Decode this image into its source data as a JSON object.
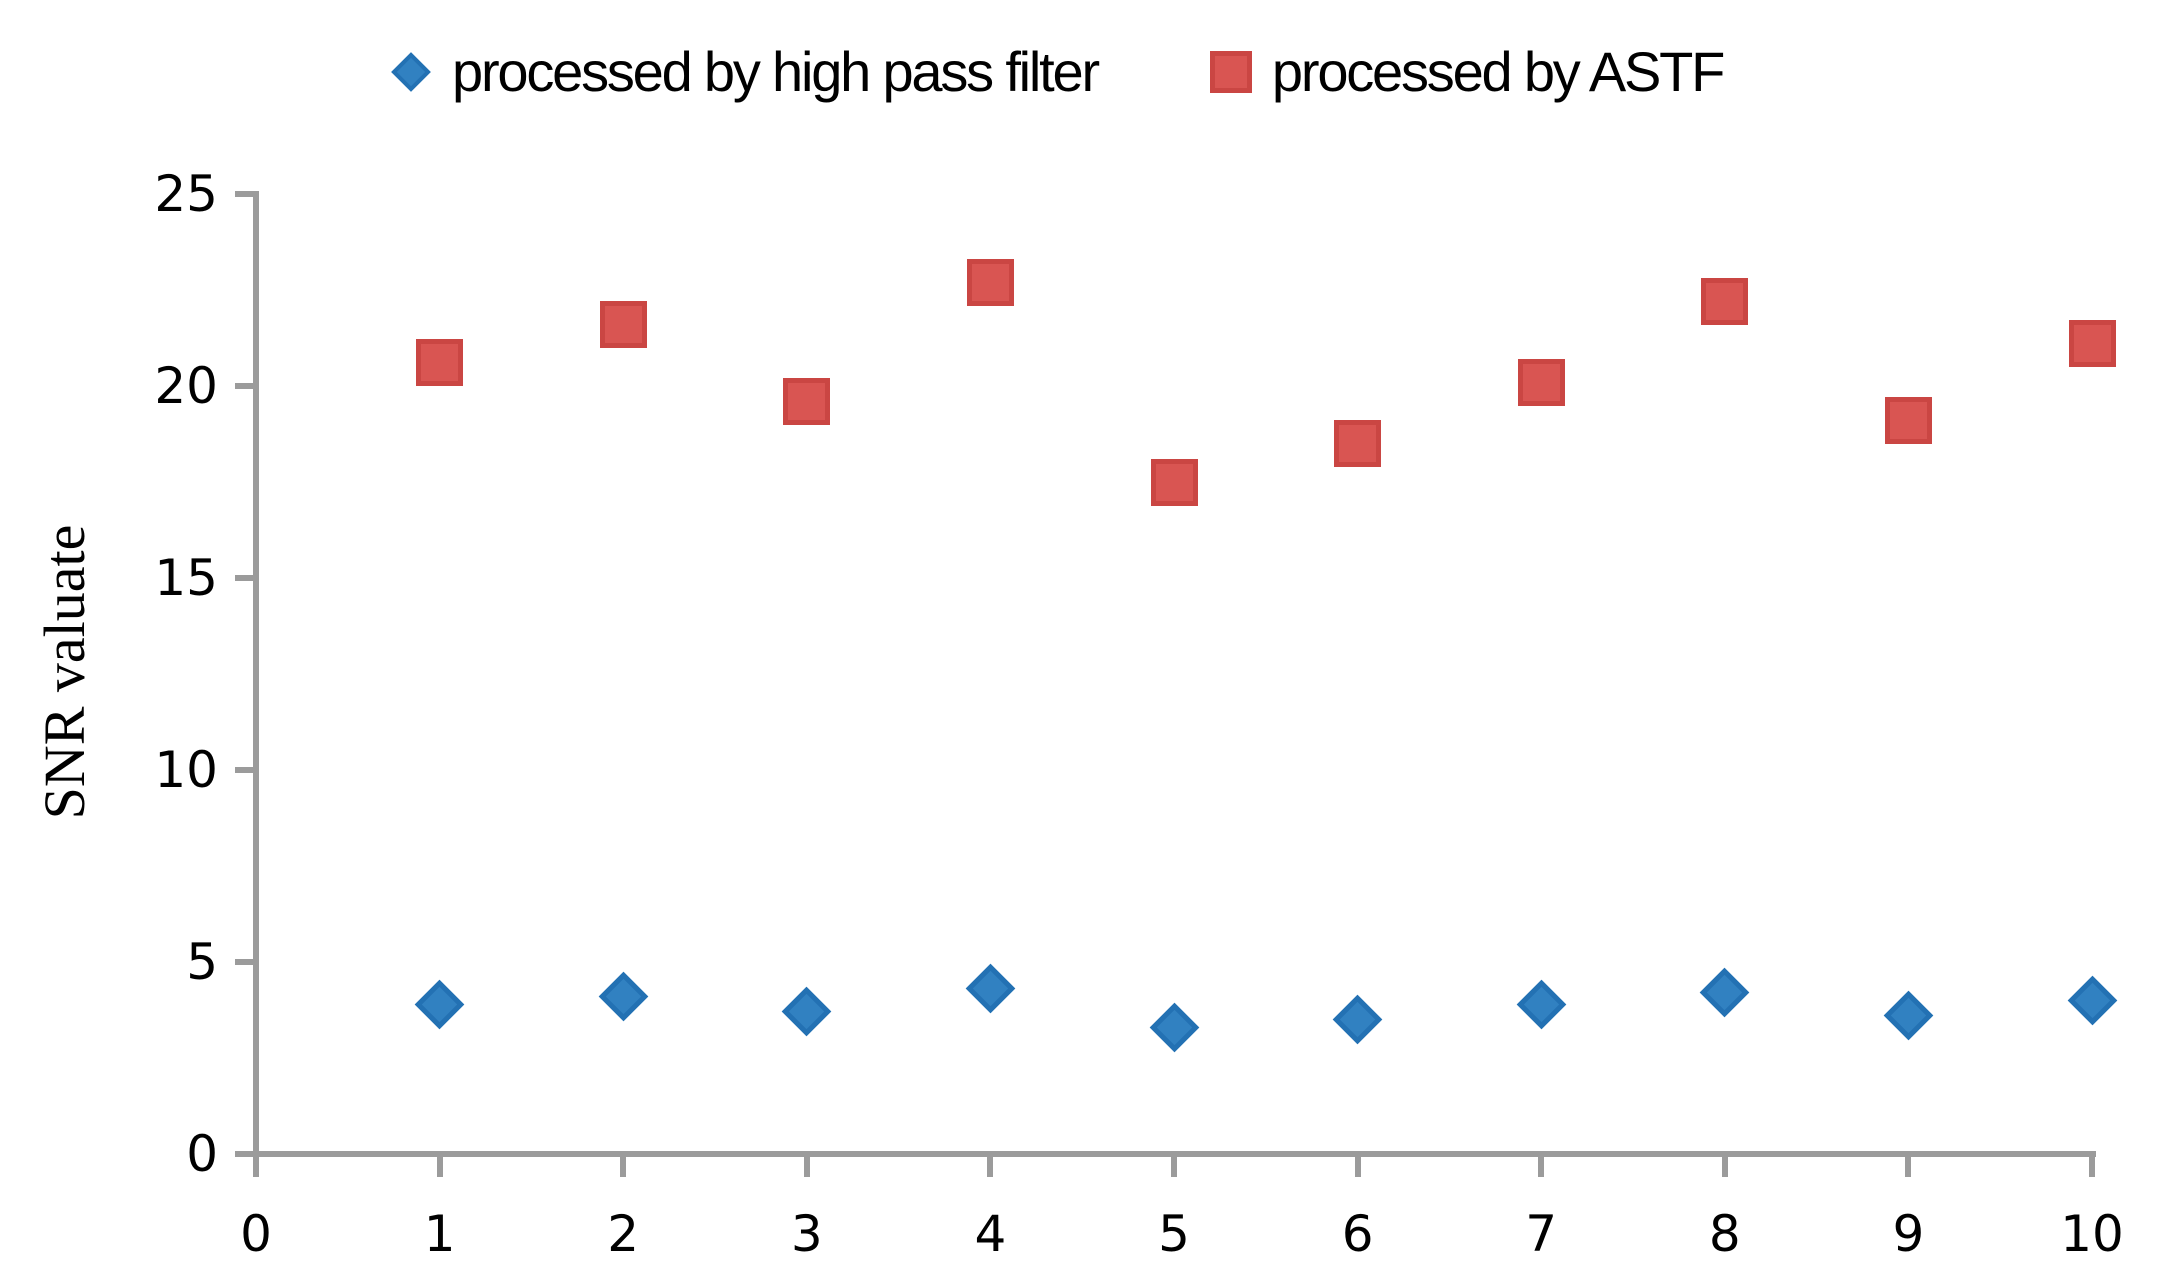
{
  "legend": {
    "items": [
      {
        "label": "processed by high pass filter",
        "marker": "diamond"
      },
      {
        "label": "processed by ASTF",
        "marker": "square"
      }
    ]
  },
  "y_axis": {
    "title": "SNR valuate"
  },
  "colors": {
    "blue_fill": "#3181C1",
    "blue_border": "#2371B3",
    "red_fill": "#D95552",
    "red_border": "#CA4643",
    "axis": "#9B9B9B",
    "text": "#000000"
  },
  "chart_data": {
    "type": "scatter",
    "title": "",
    "xlabel": "",
    "ylabel": "SNR valuate",
    "xlim": [
      0,
      10
    ],
    "ylim": [
      0,
      25
    ],
    "x_ticks": [
      0,
      1,
      2,
      3,
      4,
      5,
      6,
      7,
      8,
      9,
      10
    ],
    "y_ticks": [
      0,
      5,
      10,
      15,
      20,
      25
    ],
    "grid": false,
    "legend_position": "top",
    "series": [
      {
        "name": "processed by high pass filter",
        "marker": "diamond",
        "color": "#3181C1",
        "x": [
          1,
          2,
          3,
          4,
          5,
          6,
          7,
          8,
          9,
          10
        ],
        "y": [
          3.9,
          4.1,
          3.7,
          4.3,
          3.3,
          3.5,
          3.9,
          4.2,
          3.6,
          4.0
        ]
      },
      {
        "name": "processed by ASTF",
        "marker": "square",
        "color": "#D95552",
        "x": [
          1,
          2,
          3,
          4,
          5,
          6,
          7,
          8,
          9,
          10
        ],
        "y": [
          20.6,
          21.6,
          19.6,
          22.7,
          17.5,
          18.5,
          20.1,
          22.2,
          19.1,
          21.1
        ]
      }
    ]
  }
}
